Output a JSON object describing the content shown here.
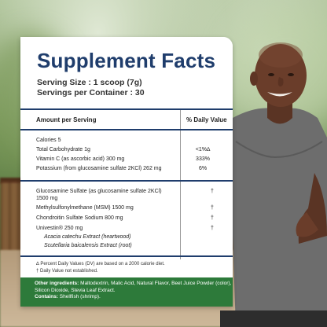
{
  "panel": {
    "title": "Supplement Facts",
    "serving_size": "Serving Size : 1 scoop (7g)",
    "servings_per_container": "Servings per Container : 30",
    "header_amount": "Amount per Serving",
    "header_dv": "% Daily Value"
  },
  "nutrients": [
    {
      "label": "Calories  5",
      "dv": ""
    },
    {
      "label": "Total Carbohydrate  1g",
      "dv": "<1%∆"
    },
    {
      "label": "Vitamin C (as ascorbic acid)  300 mg",
      "dv": "333%"
    },
    {
      "label": "Potassium (from glucosamine sulfate 2KCl) 262 mg",
      "dv": "6%"
    }
  ],
  "actives": [
    {
      "label": "Glucosamine Sulfate (as glucosamine sulfate 2KCl)",
      "dv": "†"
    },
    {
      "label": "1500 mg",
      "dv": ""
    },
    {
      "label": "Methylsulfonylmethane (MSM)  1500 mg",
      "dv": "†"
    },
    {
      "label": "Chondroitin Sulfate Sodium  800 mg",
      "dv": "†"
    },
    {
      "label": "Univestin®  250 mg",
      "dv": "†"
    },
    {
      "label": "Acacia catechu Extract (heartwood)",
      "dv": ""
    },
    {
      "label": "Scutellaria baicalensis Extract (root)",
      "dv": ""
    }
  ],
  "footnotes": {
    "dv_note": "∆  Percent Daily Values (DV) are based on a 2000 calorie diet.",
    "not_established": "† Daily Value not established."
  },
  "other": {
    "ingredients_label": "Other ingredients:",
    "ingredients_text": " Maltodextrin, Malic Acid, Natural Flavor, Beet Juice Powder (color), Silicon Dioxide, Stevia Leaf Extract.",
    "contains_label": "Contains:",
    "contains_text": " Shellfish (shrimp)."
  },
  "colors": {
    "title": "#1f3d6c",
    "bar": "#1f3d6c",
    "other_bg": "#2d7a3a"
  }
}
